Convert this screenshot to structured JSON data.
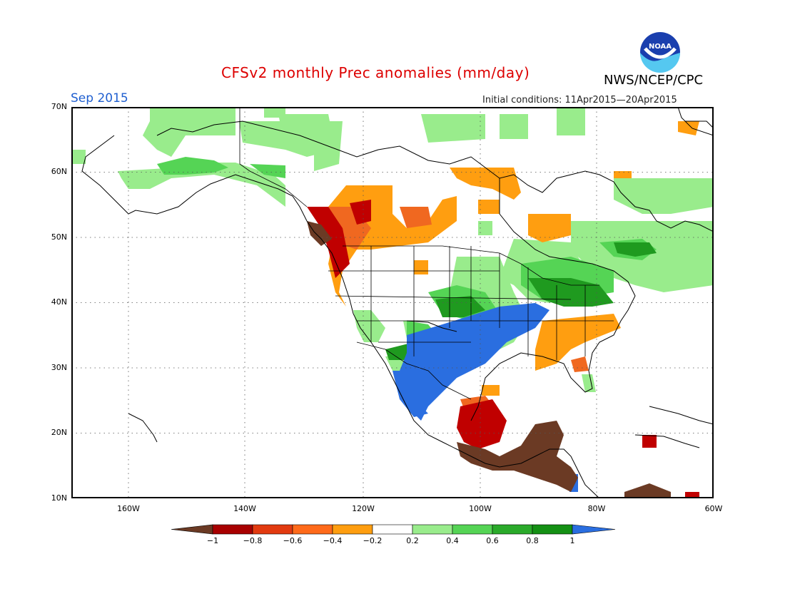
{
  "title": "CFSv2 monthly Prec anomalies (mm/day)",
  "agency": "NWS/NCEP/CPC",
  "logo_text": "NOAA",
  "month": "Sep 2015",
  "initial_conditions": "Initial conditions: 11Apr2015—20Apr2015",
  "lat_labels": [
    "70N",
    "60N",
    "50N",
    "40N",
    "30N",
    "20N",
    "10N"
  ],
  "lon_labels": [
    "160W",
    "140W",
    "120W",
    "100W",
    "80W",
    "60W"
  ],
  "colorbar": {
    "labels": [
      "−1",
      "−0.8",
      "−0.6",
      "−0.4",
      "−0.2",
      "0.2",
      "0.4",
      "0.6",
      "0.8",
      "1"
    ],
    "colors": [
      "#6b3a24",
      "#a80000",
      "#e23a10",
      "#ff6a1a",
      "#ff9e10",
      "#ffffff",
      "#99ec8c",
      "#55d455",
      "#2aaa2a",
      "#149014",
      "#2a6ee0"
    ]
  },
  "colors": {
    "title": "#dd0000",
    "month": "#1f5fd0",
    "dry_strong": "#6b3a24",
    "dry": "#ff9e10",
    "wet": "#99ec8c",
    "very_wet": "#2a6ee0"
  }
}
